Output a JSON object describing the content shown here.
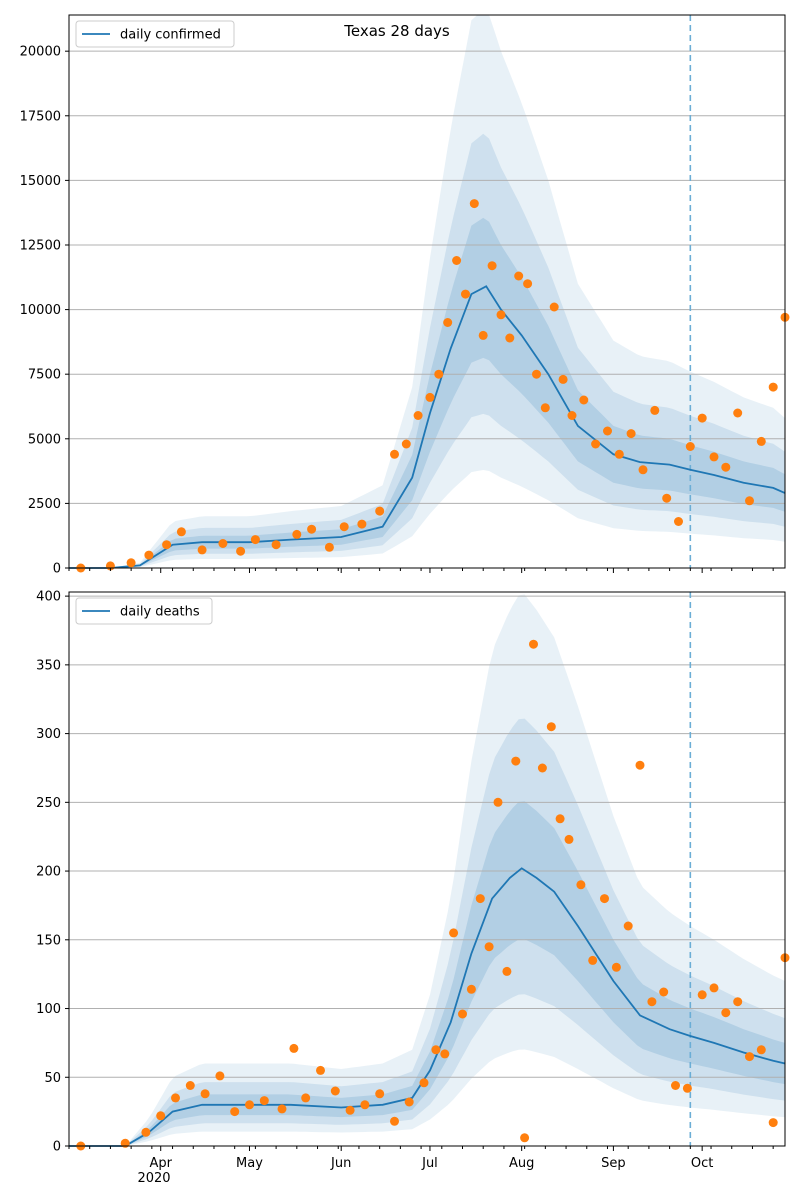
{
  "chart_data": [
    {
      "type": "line",
      "title": "Texas 28 days",
      "legend": {
        "label": "daily confirmed",
        "placement": "top-left"
      },
      "ylim": [
        0,
        21400
      ],
      "yticks": [
        "0",
        "2500",
        "5000",
        "7500",
        "10000",
        "12500",
        "15000",
        "17500",
        "20000"
      ],
      "ytick_values": [
        0,
        2500,
        5000,
        7500,
        10000,
        12500,
        15000,
        17500,
        20000
      ],
      "grid": "horizontal",
      "vline_date": "2020-09-27",
      "series": [
        {
          "kind": "model_mean",
          "x": [
            "2020-03-01",
            "2020-03-15",
            "2020-03-25",
            "2020-04-05",
            "2020-04-15",
            "2020-05-01",
            "2020-05-15",
            "2020-06-01",
            "2020-06-15",
            "2020-06-25",
            "2020-07-01",
            "2020-07-08",
            "2020-07-15",
            "2020-07-20",
            "2020-07-25",
            "2020-08-01",
            "2020-08-10",
            "2020-08-20",
            "2020-09-01",
            "2020-09-10",
            "2020-09-20",
            "2020-09-27",
            "2020-10-05",
            "2020-10-15",
            "2020-10-25",
            "2020-10-29"
          ],
          "values": [
            0,
            0,
            100,
            900,
            1000,
            1000,
            1100,
            1200,
            1600,
            3500,
            6000,
            8500,
            10600,
            10900,
            10000,
            9000,
            7500,
            5500,
            4400,
            4100,
            4000,
            3800,
            3600,
            3300,
            3100,
            2900
          ]
        },
        {
          "kind": "observed",
          "x": [
            "2020-03-05",
            "2020-03-15",
            "2020-03-22",
            "2020-03-28",
            "2020-04-03",
            "2020-04-08",
            "2020-04-15",
            "2020-04-22",
            "2020-04-28",
            "2020-05-03",
            "2020-05-10",
            "2020-05-17",
            "2020-05-22",
            "2020-05-28",
            "2020-06-02",
            "2020-06-08",
            "2020-06-14",
            "2020-06-19",
            "2020-06-23",
            "2020-06-27",
            "2020-07-01",
            "2020-07-04",
            "2020-07-07",
            "2020-07-10",
            "2020-07-13",
            "2020-07-16",
            "2020-07-19",
            "2020-07-22",
            "2020-07-25",
            "2020-07-28",
            "2020-07-31",
            "2020-08-03",
            "2020-08-06",
            "2020-08-09",
            "2020-08-12",
            "2020-08-15",
            "2020-08-18",
            "2020-08-22",
            "2020-08-26",
            "2020-08-30",
            "2020-09-03",
            "2020-09-07",
            "2020-09-11",
            "2020-09-15",
            "2020-09-19",
            "2020-09-23",
            "2020-09-27",
            "2020-10-01",
            "2020-10-05",
            "2020-10-09",
            "2020-10-13",
            "2020-10-17",
            "2020-10-21",
            "2020-10-25",
            "2020-10-29"
          ],
          "values": [
            0,
            80,
            200,
            500,
            900,
            1400,
            700,
            950,
            650,
            1100,
            900,
            1300,
            1500,
            800,
            1600,
            1700,
            2200,
            4400,
            4800,
            5900,
            6600,
            7500,
            9500,
            11900,
            10600,
            14100,
            9000,
            11700,
            9800,
            8900,
            11300,
            11000,
            7500,
            6200,
            10100,
            7300,
            5900,
            6500,
            4800,
            5300,
            4400,
            5200,
            3800,
            6100,
            2700,
            1800,
            4700,
            5800,
            4300,
            3900,
            6000,
            2600,
            4900,
            7000,
            9700
          ]
        }
      ]
    },
    {
      "type": "line",
      "title": "",
      "legend": {
        "label": "daily deaths",
        "placement": "top-left"
      },
      "ylim": [
        0,
        403
      ],
      "yticks": [
        "0",
        "50",
        "100",
        "150",
        "200",
        "250",
        "300",
        "350",
        "400"
      ],
      "ytick_values": [
        0,
        50,
        100,
        150,
        200,
        250,
        300,
        350,
        400
      ],
      "grid": "horizontal",
      "vline_date": "2020-09-27",
      "series": [
        {
          "kind": "model_mean",
          "x": [
            "2020-03-01",
            "2020-03-20",
            "2020-03-28",
            "2020-04-05",
            "2020-04-15",
            "2020-05-01",
            "2020-05-15",
            "2020-06-01",
            "2020-06-15",
            "2020-06-25",
            "2020-07-01",
            "2020-07-08",
            "2020-07-15",
            "2020-07-22",
            "2020-07-28",
            "2020-08-01",
            "2020-08-06",
            "2020-08-12",
            "2020-08-20",
            "2020-09-01",
            "2020-09-10",
            "2020-09-20",
            "2020-09-27",
            "2020-10-05",
            "2020-10-15",
            "2020-10-25",
            "2020-10-29"
          ],
          "values": [
            0,
            0,
            10,
            25,
            30,
            30,
            30,
            28,
            30,
            35,
            55,
            90,
            140,
            180,
            195,
            202,
            195,
            185,
            160,
            120,
            95,
            85,
            80,
            75,
            68,
            62,
            60
          ]
        },
        {
          "kind": "observed",
          "x": [
            "2020-03-05",
            "2020-03-20",
            "2020-03-27",
            "2020-04-01",
            "2020-04-06",
            "2020-04-11",
            "2020-04-16",
            "2020-04-21",
            "2020-04-26",
            "2020-05-01",
            "2020-05-06",
            "2020-05-12",
            "2020-05-16",
            "2020-05-20",
            "2020-05-25",
            "2020-05-30",
            "2020-06-04",
            "2020-06-09",
            "2020-06-14",
            "2020-06-19",
            "2020-06-24",
            "2020-06-29",
            "2020-07-03",
            "2020-07-06",
            "2020-07-09",
            "2020-07-12",
            "2020-07-15",
            "2020-07-18",
            "2020-07-21",
            "2020-07-24",
            "2020-07-27",
            "2020-07-30",
            "2020-08-02",
            "2020-08-05",
            "2020-08-08",
            "2020-08-11",
            "2020-08-14",
            "2020-08-17",
            "2020-08-21",
            "2020-08-25",
            "2020-08-29",
            "2020-09-02",
            "2020-09-06",
            "2020-09-10",
            "2020-09-14",
            "2020-09-18",
            "2020-09-22",
            "2020-09-26",
            "2020-10-01",
            "2020-10-05",
            "2020-10-09",
            "2020-10-13",
            "2020-10-17",
            "2020-10-21",
            "2020-10-25",
            "2020-10-29"
          ],
          "values": [
            0,
            2,
            10,
            22,
            35,
            44,
            38,
            51,
            25,
            30,
            33,
            27,
            71,
            35,
            55,
            40,
            26,
            30,
            38,
            18,
            32,
            46,
            70,
            67,
            155,
            96,
            114,
            180,
            145,
            250,
            127,
            280,
            6,
            365,
            275,
            305,
            238,
            223,
            190,
            135,
            180,
            130,
            160,
            277,
            105,
            112,
            44,
            42,
            110,
            115,
            97,
            105,
            65,
            70,
            17,
            137
          ]
        }
      ]
    }
  ],
  "x_axis": {
    "range": [
      "2020-03-01",
      "2020-10-29"
    ],
    "ticks": [
      {
        "date": "2020-04-01",
        "label": "Apr"
      },
      {
        "date": "2020-05-01",
        "label": "May"
      },
      {
        "date": "2020-06-01",
        "label": "Jun"
      },
      {
        "date": "2020-07-01",
        "label": "Jul"
      },
      {
        "date": "2020-08-01",
        "label": "Aug"
      },
      {
        "date": "2020-09-01",
        "label": "Sep"
      },
      {
        "date": "2020-10-01",
        "label": "Oct"
      }
    ],
    "year_label": "2020"
  },
  "colors": {
    "mean_line": "#1f77b4",
    "observed": "#ff7f0e",
    "band": "#1f77b4",
    "grid": "#b0b0b0",
    "vline": "#6baed6"
  }
}
